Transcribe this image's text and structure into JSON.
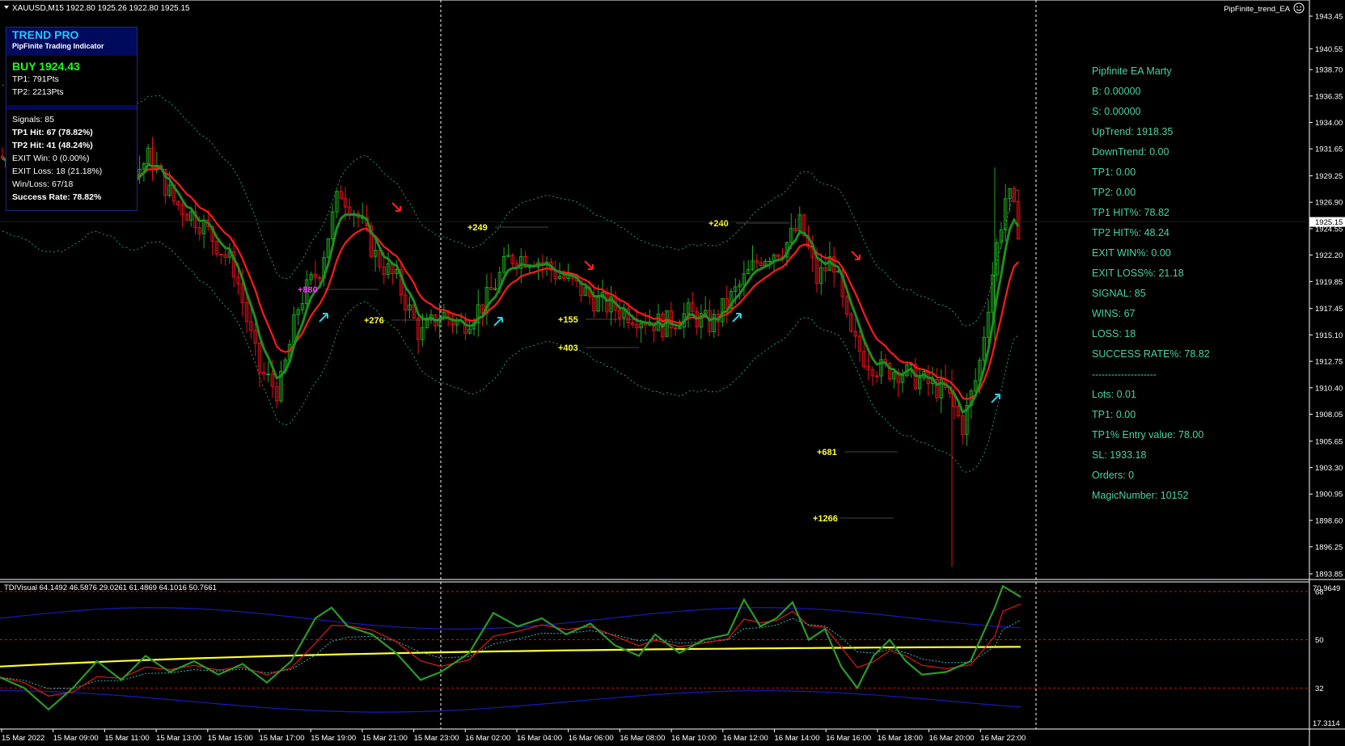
{
  "chart_header": {
    "symbol_line": "XAUUSD,M15  1922.80 1925.26 1922.80 1925.15",
    "ea_name": "PipFinite_trend_EA"
  },
  "trend_panel": {
    "title": "TREND PRO",
    "subtitle": "PipFinite Trading Indicator",
    "signal": "BUY 1924.43",
    "tp1": "TP1: 791Pts",
    "tp2": "TP2: 2213Pts",
    "signals": "Signals: 85",
    "tp1_hit": "TP1 Hit: 67 (78.82%)",
    "tp2_hit": "TP2 Hit: 41 (48.24%)",
    "exit_win": "EXIT Win: 0 (0.00%)",
    "exit_loss": "EXIT Loss: 18 (21.18%)",
    "win_loss": "Win/Loss: 67/18",
    "success_rate": "Success Rate: 78.82%"
  },
  "ea_info": {
    "title": "Pipfinite EA Marty",
    "b": "B: 0.00000",
    "s": "S: 0.00000",
    "uptrend": "UpTrend: 1918.35",
    "downtrend": "DownTrend: 0.00",
    "tp1": "TP1: 0.00",
    "tp2": "TP2: 0.00",
    "tp1_hit_pct": "TP1 HIT%: 78.82",
    "tp2_hit_pct": "TP2 HIT%: 48.24",
    "exit_win_pct": "EXIT WIN%: 0.00",
    "exit_loss_pct": "EXIT LOSS%: 21.18",
    "signal": "SIGNAL: 85",
    "wins": "WINS: 67",
    "loss": "LOSS: 18",
    "success_rate_pct": "SUCCESS RATE%: 78.82",
    "separator": "--------------------",
    "lots": "Lots: 0.01",
    "tp1_b": "TP1: 0.00",
    "tp1_entry": "TP1% Entry value: 78.00",
    "sl": "SL: 1933.18",
    "orders": "Orders: 0",
    "magic": "MagicNumber: 10152"
  },
  "price_axis": {
    "ticks": [
      "1943.45",
      "1940.55",
      "1938.70",
      "1936.35",
      "1934.00",
      "1931.65",
      "1929.25",
      "1926.90",
      "1924.55",
      "1922.20",
      "1919.85",
      "1917.45",
      "1915.10",
      "1912.75",
      "1910.40",
      "1908.05",
      "1905.65",
      "1903.30",
      "1900.95",
      "1898.60",
      "1896.25",
      "1893.85"
    ],
    "current_price": "1925.15"
  },
  "trade_labels": [
    "+249",
    "+240",
    "+880",
    "+276",
    "+155",
    "+403",
    "+681",
    "+1266"
  ],
  "indicator": {
    "title": "TDIVisual 64.1492 46.5876 29.0261 61.4869 64.1016 50.7661",
    "axis_top": "70.9649",
    "levels": [
      "68",
      "50",
      "32"
    ],
    "axis_bottom": "17.3114"
  },
  "time_axis": [
    "15 Mar 2022",
    "15 Mar 09:00",
    "15 Mar 11:00",
    "15 Mar 13:00",
    "15 Mar 15:00",
    "15 Mar 17:00",
    "15 Mar 19:00",
    "15 Mar 21:00",
    "15 Mar 23:00",
    "16 Mar 02:00",
    "16 Mar 04:00",
    "16 Mar 06:00",
    "16 Mar 08:00",
    "16 Mar 10:00",
    "16 Mar 12:00",
    "16 Mar 14:00",
    "16 Mar 16:00",
    "16 Mar 18:00",
    "16 Mar 20:00",
    "16 Mar 22:00"
  ],
  "colors": {
    "background": "#000000",
    "bull": "#1faa1f",
    "bear": "#e8101c",
    "red_line": "#ff1a1a",
    "green_line": "#1f8f1f",
    "bands": "#2aa57a",
    "tdi_yellow": "#ffff33",
    "tdi_blue": "#1a1ab8",
    "labels": "#ffff33",
    "ea_text": "#48d3a0"
  }
}
